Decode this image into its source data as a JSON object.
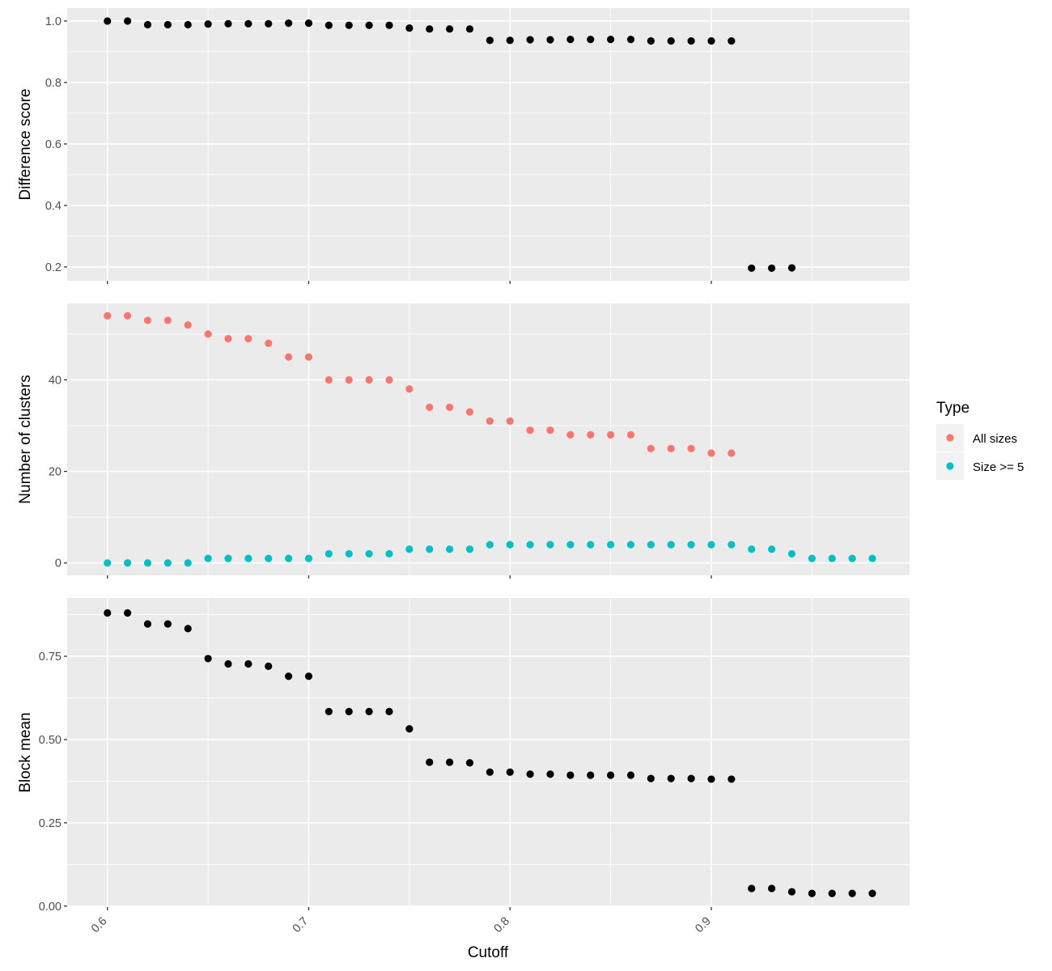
{
  "chart_data": {
    "type": "scatter",
    "xlabel": "Cutoff",
    "xlim": [
      0.58,
      0.9985
    ],
    "x_ticks": [
      0.6,
      0.7,
      0.8,
      0.9
    ],
    "x_tick_labels": [
      "0.6",
      "0.7",
      "0.8",
      "0.9"
    ],
    "x_minor": [
      0.65,
      0.75,
      0.85,
      0.95
    ],
    "legend": {
      "title": "Type",
      "placement": "right",
      "entries": [
        {
          "label": "All sizes",
          "color": "#F8766D"
        },
        {
          "label": "Size >= 5",
          "color": "#00BFC4"
        }
      ]
    },
    "panels": [
      {
        "ylabel": "Difference score",
        "ylim": [
          0.155,
          1.042
        ],
        "y_ticks": [
          0.2,
          0.4,
          0.6,
          0.8,
          1.0
        ],
        "y_tick_labels": [
          "0.2",
          "0.4",
          "0.6",
          "0.8",
          "1.0"
        ],
        "y_minor": [
          0.3,
          0.5,
          0.7,
          0.9
        ],
        "series": [
          {
            "color": "#000000",
            "x": [
              0.6,
              0.61,
              0.62,
              0.63,
              0.64,
              0.65,
              0.66,
              0.67,
              0.68,
              0.69,
              0.7,
              0.71,
              0.72,
              0.73,
              0.74,
              0.75,
              0.76,
              0.77,
              0.78,
              0.79,
              0.8,
              0.81,
              0.82,
              0.83,
              0.84,
              0.85,
              0.86,
              0.87,
              0.88,
              0.89,
              0.9,
              0.91,
              0.92,
              0.93,
              0.94
            ],
            "y": [
              1.0,
              1.0,
              0.988,
              0.988,
              0.988,
              0.99,
              0.991,
              0.991,
              0.991,
              0.993,
              0.993,
              0.986,
              0.986,
              0.986,
              0.986,
              0.977,
              0.974,
              0.974,
              0.974,
              0.937,
              0.937,
              0.939,
              0.939,
              0.94,
              0.94,
              0.94,
              0.94,
              0.935,
              0.935,
              0.935,
              0.935,
              0.935,
              0.196,
              0.196,
              0.197
            ]
          }
        ]
      },
      {
        "ylabel": "Number of clusters",
        "ylim": [
          -2.7,
          56.7
        ],
        "y_ticks": [
          0,
          20,
          40
        ],
        "y_tick_labels": [
          "0",
          "20",
          "40"
        ],
        "y_minor": [
          10,
          30,
          50
        ],
        "series": [
          {
            "name": "All sizes",
            "color": "#F8766D",
            "x": [
              0.6,
              0.61,
              0.62,
              0.63,
              0.64,
              0.65,
              0.66,
              0.67,
              0.68,
              0.69,
              0.7,
              0.71,
              0.72,
              0.73,
              0.74,
              0.75,
              0.76,
              0.77,
              0.78,
              0.79,
              0.8,
              0.81,
              0.82,
              0.83,
              0.84,
              0.85,
              0.86,
              0.87,
              0.88,
              0.89,
              0.9,
              0.91
            ],
            "y": [
              54,
              54,
              53,
              53,
              52,
              50,
              49,
              49,
              48,
              45,
              45,
              40,
              40,
              40,
              40,
              38,
              34,
              34,
              33,
              31,
              31,
              29,
              29,
              28,
              28,
              28,
              28,
              25,
              25,
              25,
              24,
              24
            ]
          },
          {
            "name": "Size >= 5",
            "color": "#00BFC4",
            "x": [
              0.6,
              0.61,
              0.62,
              0.63,
              0.64,
              0.65,
              0.66,
              0.67,
              0.68,
              0.69,
              0.7,
              0.71,
              0.72,
              0.73,
              0.74,
              0.75,
              0.76,
              0.77,
              0.78,
              0.79,
              0.8,
              0.81,
              0.82,
              0.83,
              0.84,
              0.85,
              0.86,
              0.87,
              0.88,
              0.89,
              0.9,
              0.91,
              0.92,
              0.93,
              0.94,
              0.95,
              0.96,
              0.97,
              0.98
            ],
            "y": [
              0,
              0,
              0,
              0,
              0,
              1,
              1,
              1,
              1,
              1,
              1,
              2,
              2,
              2,
              2,
              3,
              3,
              3,
              3,
              4,
              4,
              4,
              4,
              4,
              4,
              4,
              4,
              4,
              4,
              4,
              4,
              4,
              3,
              3,
              2,
              1,
              1,
              1,
              1
            ]
          }
        ]
      },
      {
        "ylabel": "Block mean",
        "ylim": [
          -0.003,
          0.925
        ],
        "y_ticks": [
          0.0,
          0.25,
          0.5,
          0.75
        ],
        "y_tick_labels": [
          "0.00",
          "0.25",
          "0.50",
          "0.75"
        ],
        "y_minor": [
          0.125,
          0.375,
          0.625,
          0.875
        ],
        "series": [
          {
            "color": "#000000",
            "x": [
              0.6,
              0.61,
              0.62,
              0.63,
              0.64,
              0.65,
              0.66,
              0.67,
              0.68,
              0.69,
              0.7,
              0.71,
              0.72,
              0.73,
              0.74,
              0.75,
              0.76,
              0.77,
              0.78,
              0.79,
              0.8,
              0.81,
              0.82,
              0.83,
              0.84,
              0.85,
              0.86,
              0.87,
              0.88,
              0.89,
              0.9,
              0.91,
              0.92,
              0.93,
              0.94,
              0.95,
              0.96,
              0.97,
              0.98
            ],
            "y": [
              0.88,
              0.88,
              0.847,
              0.847,
              0.833,
              0.743,
              0.727,
              0.727,
              0.72,
              0.69,
              0.69,
              0.584,
              0.584,
              0.584,
              0.584,
              0.532,
              0.432,
              0.432,
              0.43,
              0.402,
              0.402,
              0.396,
              0.396,
              0.393,
              0.393,
              0.393,
              0.393,
              0.383,
              0.383,
              0.383,
              0.381,
              0.381,
              0.053,
              0.053,
              0.043,
              0.038,
              0.038,
              0.038,
              0.038
            ]
          }
        ]
      }
    ]
  }
}
